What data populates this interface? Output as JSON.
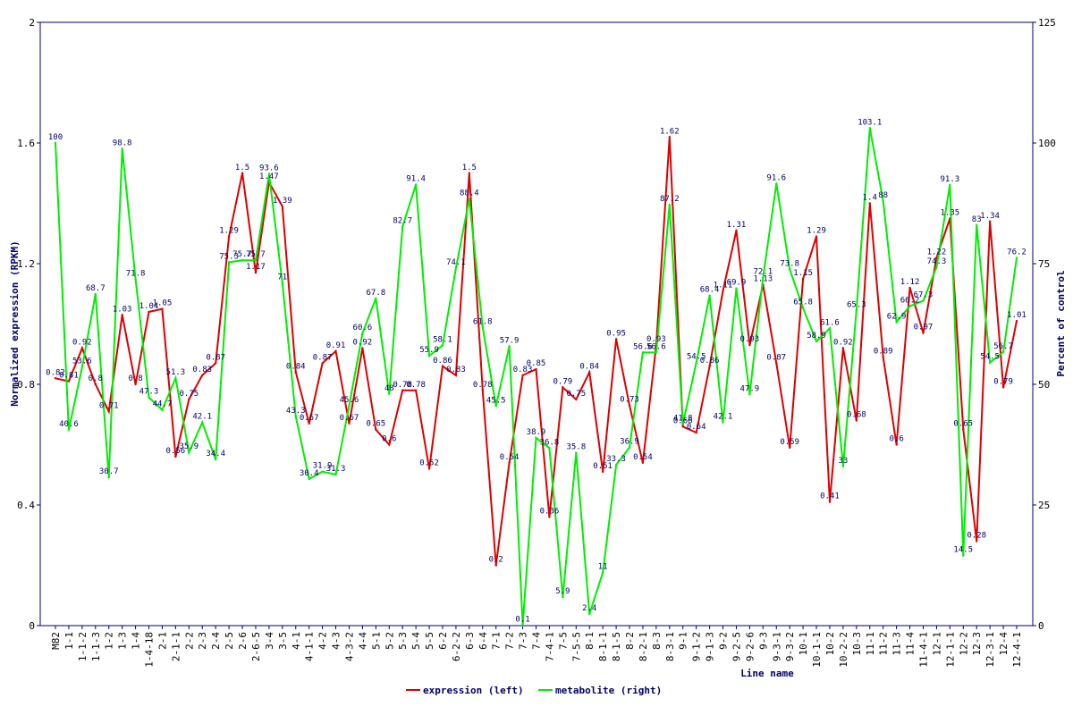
{
  "chart_data": {
    "type": "line",
    "xlabel": "Line name",
    "ylabel": "Normalized expression (RPKM)",
    "y2label": "Percent of control",
    "ylim": [
      0,
      2
    ],
    "y2lim": [
      0,
      125
    ],
    "yticks": [
      "0",
      "0.4",
      "0.8",
      "1.2",
      "1.6",
      "2"
    ],
    "y2ticks": [
      "0",
      "25",
      "50",
      "75",
      "100",
      "125"
    ],
    "grid": false,
    "legend_position": "bottom-center",
    "categories": [
      "M82",
      "1-1",
      "1-1-2",
      "1-1-3",
      "1-2",
      "1-3",
      "1-4",
      "1-4-18",
      "2-1",
      "2-1-1",
      "2-2",
      "2-3",
      "2-4",
      "2-5",
      "2-6",
      "2-6-5",
      "3-4",
      "3-5",
      "4-1",
      "4-1-1",
      "4-2",
      "4-3",
      "4-3-2",
      "4-4",
      "5-1",
      "5-2",
      "5-3",
      "5-4",
      "5-5",
      "6-2",
      "6-2-2",
      "6-3",
      "6-4",
      "7-1",
      "7-2",
      "7-3",
      "7-4",
      "7-4-1",
      "7-5",
      "7-5-5",
      "8-1",
      "8-1-1",
      "8-1-5",
      "8-2",
      "8-2-1",
      "8-3",
      "8-3-1",
      "9-1",
      "9-1-2",
      "9-1-3",
      "9-2",
      "9-2-5",
      "9-2-6",
      "9-3",
      "9-3-1",
      "9-3-2",
      "10-1",
      "10-1-1",
      "10-2",
      "10-2-2",
      "10-3",
      "11-1",
      "11-2",
      "11-3",
      "11-4",
      "11-4-1",
      "12-1",
      "12-1-1",
      "12-2",
      "12-3",
      "12-3-1",
      "12-4",
      "12-4-1"
    ],
    "tick_labels": [
      "M82",
      "1-1",
      "1-1-2",
      "1-1-3",
      "1-2",
      "1-3",
      "1-4",
      "1-4-18",
      "2-1",
      "2-1-1",
      "2-2",
      "2-3",
      "2-4",
      "2-5",
      "2-6",
      "2-6-5",
      "3-4",
      "3-5",
      "4-1",
      "4-1-1",
      "4-2",
      "4-3",
      "4-3-2",
      "4-4",
      "5-1",
      "5-2",
      "5-3",
      "5-4",
      "5-5",
      "6-2",
      "6-2-2",
      "6-3",
      "6-4",
      "7-1",
      "7-2",
      "7-3",
      "7-4",
      "7-4-1",
      "7-5",
      "7-5-5",
      "8-1",
      "8-1-1",
      "8-1-5",
      "8-2",
      "8-2-1",
      "8-3",
      "8-3-1",
      "9-1",
      "9-1-2",
      "9-1-3",
      "9-2",
      "9-2-5",
      "9-2-6",
      "9-3",
      "9-3-1",
      "9-3-2",
      "10-1",
      "10-1-1",
      "10-2",
      "10-2-2",
      "10-3",
      "11-1",
      "11-2",
      "11-3",
      "11-4",
      "11-4-1",
      "12-1",
      "12-1-1",
      "12-2",
      "12-3",
      "12-3-1",
      "12-4",
      "12-4-1"
    ],
    "series": [
      {
        "name": "expression (left)",
        "axis": "left",
        "color": "#dd0000",
        "values": [
          0.82,
          0.81,
          0.92,
          0.8,
          0.71,
          1.03,
          0.8,
          1.04,
          1.05,
          0.56,
          0.75,
          0.83,
          0.87,
          1.29,
          1.5,
          1.17,
          1.47,
          1.39,
          0.84,
          0.67,
          0.87,
          0.91,
          0.67,
          0.92,
          0.65,
          0.6,
          0.78,
          0.78,
          0.52,
          0.86,
          0.83,
          1.5,
          0.78,
          0.2,
          0.54,
          0.83,
          0.85,
          0.36,
          0.79,
          0.75,
          0.84,
          0.51,
          0.95,
          0.73,
          0.54,
          0.93,
          1.62,
          0.66,
          0.64,
          0.86,
          1.11,
          1.31,
          0.93,
          1.13,
          0.87,
          0.59,
          1.15,
          1.29,
          0.41,
          0.92,
          0.68,
          1.4,
          0.89,
          0.6,
          1.12,
          0.97,
          1.22,
          1.35,
          0.65,
          0.28,
          1.34,
          0.79,
          1.01
        ]
      },
      {
        "name": "metabolite (right)",
        "axis": "right",
        "color": "#00ee00",
        "values": [
          100,
          40.6,
          53.6,
          68.7,
          30.7,
          98.8,
          71.8,
          47.3,
          44.7,
          51.3,
          35.9,
          42.1,
          34.4,
          75.3,
          75.7,
          75.7,
          93.6,
          71,
          43.3,
          30.4,
          31.9,
          31.3,
          45.6,
          60.6,
          67.8,
          48,
          82.7,
          91.4,
          55.9,
          58.1,
          74.1,
          88.4,
          61.8,
          45.5,
          57.9,
          0.1,
          38.9,
          36.8,
          5.9,
          35.8,
          2.4,
          11,
          33.3,
          36.9,
          56.6,
          56.6,
          87.2,
          41.8,
          54.5,
          68.4,
          42.1,
          69.9,
          47.9,
          72.1,
          91.6,
          73.8,
          65.8,
          58.9,
          61.6,
          33,
          65.3,
          103.1,
          88,
          62.9,
          66.2,
          67.3,
          74.3,
          91.3,
          14.5,
          83,
          54.5,
          56.7,
          76.2
        ]
      }
    ]
  }
}
